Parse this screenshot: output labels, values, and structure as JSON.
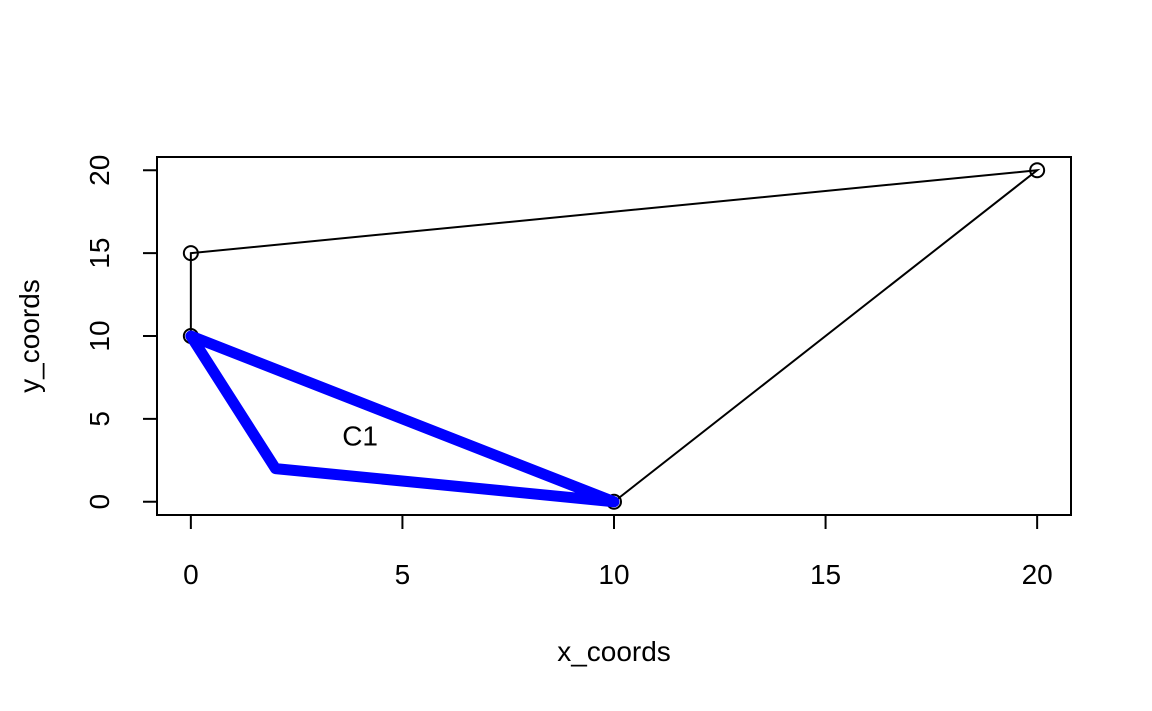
{
  "chart_data": {
    "type": "scatter",
    "title": "",
    "xlabel": "x_coords",
    "ylabel": "y_coords",
    "xlim": [
      -0.8,
      20.8
    ],
    "ylim": [
      -0.8,
      20.8
    ],
    "x_ticks": [
      0,
      5,
      10,
      15,
      20
    ],
    "y_ticks": [
      0,
      5,
      10,
      15,
      20
    ],
    "grid": false,
    "series": [
      {
        "style": "points-connected",
        "color": "#000000",
        "x": [
          10,
          20,
          0,
          0
        ],
        "y": [
          0,
          20,
          15,
          10
        ]
      },
      {
        "style": "polygon",
        "color": "#0000ff",
        "x": [
          0,
          2,
          10
        ],
        "y": [
          10,
          2,
          0
        ]
      }
    ],
    "annotations": [
      {
        "text": "C1",
        "x": 4,
        "y": 4
      }
    ]
  }
}
